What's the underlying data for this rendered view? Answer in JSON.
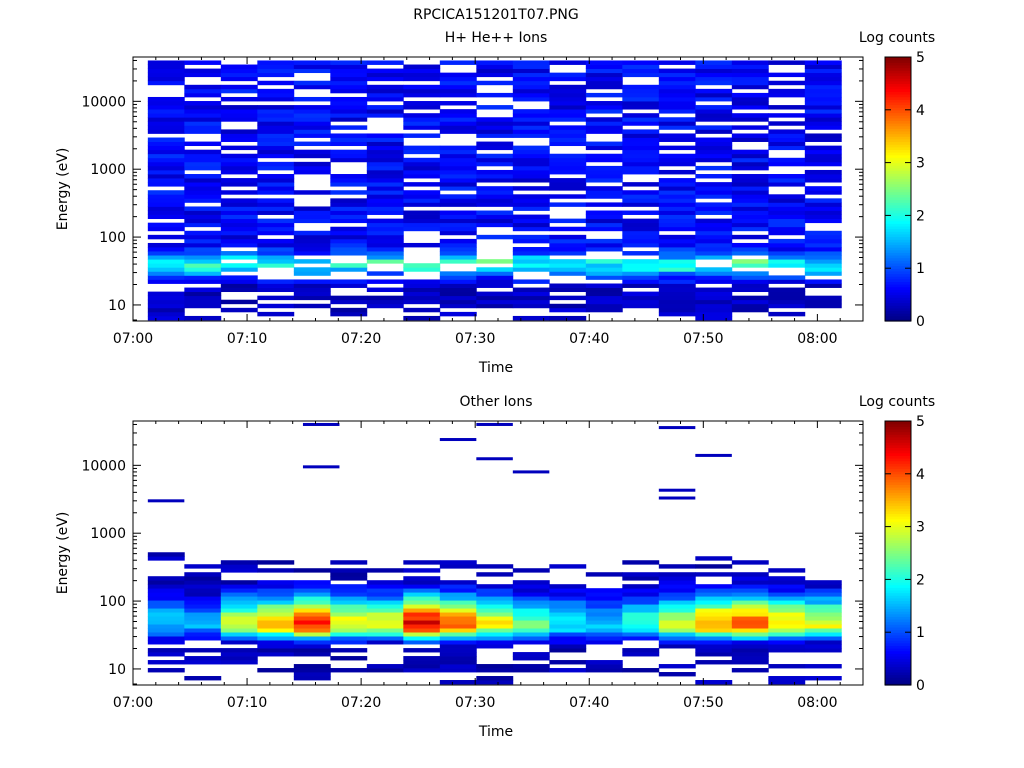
{
  "page_title": "RPCICA151201T07.PNG",
  "colorbar": {
    "label": "Log counts",
    "ticks": [
      "0",
      "1",
      "2",
      "3",
      "4",
      "5"
    ],
    "range": [
      0,
      5
    ],
    "colormap": "jet"
  },
  "x_ticks": [
    {
      "t": 0,
      "label": "07:00"
    },
    {
      "t": 10,
      "label": "07:10"
    },
    {
      "t": 20,
      "label": "07:20"
    },
    {
      "t": 30,
      "label": "07:30"
    },
    {
      "t": 40,
      "label": "07:40"
    },
    {
      "t": 50,
      "label": "07:50"
    },
    {
      "t": 60,
      "label": "08:00"
    }
  ],
  "y_ticks": [
    {
      "v": 10,
      "label": "10"
    },
    {
      "v": 100,
      "label": "100"
    },
    {
      "v": 1000,
      "label": "1000"
    },
    {
      "v": 10000,
      "label": "10000"
    }
  ],
  "chart_data": [
    {
      "type": "heatmap",
      "title": "H+ He++ Ions",
      "xlabel": "Time",
      "ylabel": "Energy (eV)",
      "yscale": "log",
      "xlim_minutes": [
        0,
        64
      ],
      "ylim": [
        5.8,
        45000
      ],
      "time_bins_start_minutes": [
        1.3,
        4.5,
        7.7,
        10.9,
        14.1,
        17.3,
        20.5,
        23.7,
        26.9,
        30.1,
        33.3,
        36.5,
        39.7,
        42.9,
        46.1,
        49.3,
        52.5,
        55.7,
        58.9
      ],
      "time_bin_width_minutes": 3.2,
      "energy_range_eV": [
        6,
        40000
      ],
      "pattern": "low_energy_peak",
      "peak_energy_eV": 40,
      "peak_log_counts": 2.4,
      "background_log_counts": 0.6,
      "empty_channel_fraction": 0.22
    },
    {
      "type": "heatmap",
      "title": "Other Ions",
      "xlabel": "Time",
      "ylabel": "Energy (eV)",
      "yscale": "log",
      "xlim_minutes": [
        0,
        64
      ],
      "ylim": [
        5.8,
        45000
      ],
      "time_bins_start_minutes": [
        1.3,
        4.5,
        7.7,
        10.9,
        14.1,
        17.3,
        20.5,
        23.7,
        26.9,
        30.1,
        33.3,
        36.5,
        39.7,
        42.9,
        46.1,
        49.3,
        52.5,
        55.7,
        58.9
      ],
      "time_bin_width_minutes": 3.2,
      "energy_range_eV": [
        6,
        600
      ],
      "pattern": "band_30_60eV",
      "peak_energy_eV": 45,
      "peak_log_counts_by_bin": [
        1.6,
        1.4,
        2.8,
        3.4,
        4.2,
        3.1,
        3.0,
        4.5,
        3.9,
        3.1,
        2.4,
        1.9,
        1.6,
        2.1,
        2.9,
        3.7,
        3.9,
        3.3,
        3.0
      ],
      "sparse_high_energy_hits": [
        {
          "t": 2.9,
          "e": 3000
        },
        {
          "t": 16.5,
          "e": 40000
        },
        {
          "t": 16.5,
          "e": 9500
        },
        {
          "t": 28.5,
          "e": 24000
        },
        {
          "t": 31.7,
          "e": 40000
        },
        {
          "t": 31.7,
          "e": 12500
        },
        {
          "t": 34.9,
          "e": 8000
        },
        {
          "t": 47.7,
          "e": 36000
        },
        {
          "t": 47.7,
          "e": 4300
        },
        {
          "t": 47.7,
          "e": 3300
        },
        {
          "t": 50.9,
          "e": 14000
        }
      ]
    }
  ]
}
